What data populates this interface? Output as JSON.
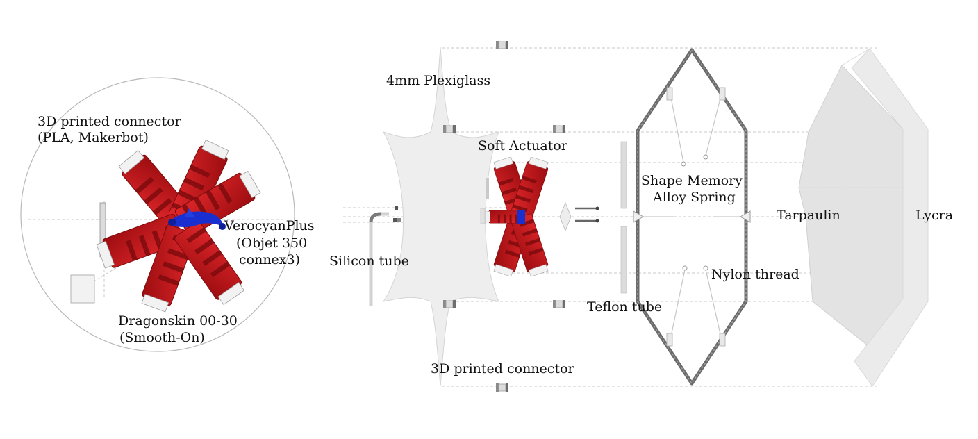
{
  "labels": {
    "printed_connector_detail_line1": "3D printed connector",
    "printed_connector_detail_line2": "(PLA, Makerbot)",
    "verocyan_line1": "VerocyanPlus",
    "verocyan_line2": "(Objet 350",
    "verocyan_line3": "connex3)",
    "dragonskin_line1": "Dragonskin 00-30",
    "dragonskin_line2": "(Smooth-On)",
    "plexiglass": "4mm Plexiglass",
    "soft_actuator": "Soft Actuator",
    "silicon_tube": "Silicon tube",
    "teflon_tube": "Teflon tube",
    "printed_connector_bottom": "3D printed connector",
    "sma_line1": "Shape Memory",
    "sma_line2": "Alloy Spring",
    "nylon_thread": "Nylon thread",
    "tarpaulin": "Tarpaulin",
    "lycra": "Lycra"
  },
  "colors": {
    "actuator_red": "#c8161a",
    "actuator_red_dark": "#8e0b0e",
    "verocyan_blue": "#1a2fd0",
    "plexiglass": "#eeeeee",
    "spring_grey": "#6b6b6b",
    "fabric_grey": "#e6e6e6"
  },
  "icons": [
    "connector-clip-icon",
    "teflon-tube-icon",
    "eyelet-icon"
  ]
}
